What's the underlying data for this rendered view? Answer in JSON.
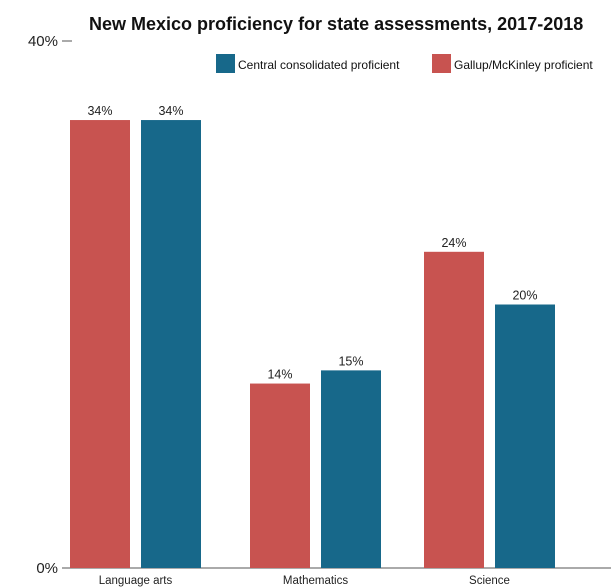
{
  "chart_data": {
    "type": "bar",
    "title": "New Mexico proficiency for state assessments, 2017-2018",
    "xlabel": "",
    "ylabel": "",
    "ylim": [
      0,
      40
    ],
    "ytick_labels": [
      "0%",
      "40%"
    ],
    "ytick_values": [
      0,
      40
    ],
    "grid": false,
    "legend_position": "top-right",
    "categories": [
      "Language arts",
      "Mathematics",
      "Science"
    ],
    "series": [
      {
        "name": "Gallup/McKinley proficient",
        "color": "#c85350",
        "values": [
          34,
          14,
          24
        ],
        "labels": [
          "34%",
          "14%",
          "24%"
        ]
      },
      {
        "name": "Central consolidated proficient",
        "color": "#17688a",
        "values": [
          34,
          15,
          20
        ],
        "labels": [
          "34%",
          "15%",
          "20%"
        ]
      }
    ],
    "legend_order": [
      "Central consolidated proficient",
      "Gallup/McKinley proficient"
    ]
  }
}
